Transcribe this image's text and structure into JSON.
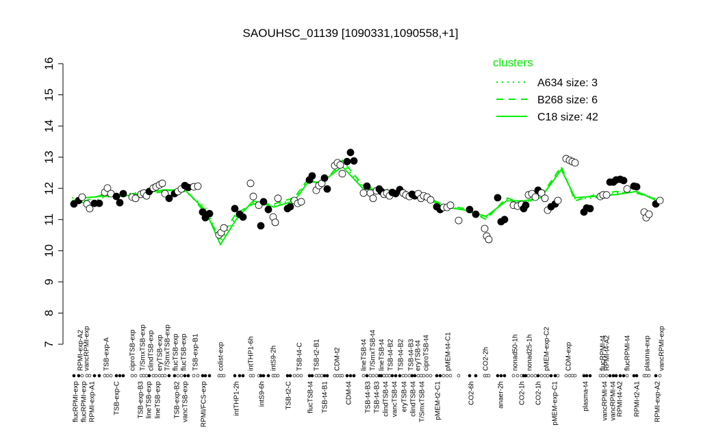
{
  "chart_data": {
    "type": "scatter",
    "title": "SAOUHSC_01139 [1090331,1090558,+1]",
    "xlim": [
      0,
      880
    ],
    "ylim": [
      7,
      16
    ],
    "yticks": [
      7,
      8,
      9,
      10,
      11,
      12,
      13,
      14,
      15,
      16
    ],
    "point_color": "#000000",
    "x": [
      8,
      15,
      20,
      27,
      31,
      38,
      45,
      53,
      57,
      62,
      70,
      75,
      80,
      93,
      98,
      106,
      110,
      114,
      118,
      124,
      128,
      133,
      137,
      141,
      147,
      155,
      160,
      165,
      170,
      175,
      183,
      189,
      196,
      200,
      206,
      220,
      223,
      227,
      243,
      250,
      255,
      266,
      270,
      278,
      281,
      285,
      292,
      299,
      302,
      306,
      320,
      324,
      330,
      335,
      340,
      352,
      356,
      362,
      366,
      370,
      374,
      378,
      389,
      393,
      397,
      400,
      407,
      412,
      417,
      431,
      436,
      441,
      445,
      450,
      454,
      457,
      461,
      465,
      469,
      473,
      478,
      484,
      489,
      493,
      498,
      502,
      506,
      511,
      515,
      519,
      524,
      529,
      538,
      543,
      548,
      553,
      558,
      570,
      586,
      595,
      608,
      611,
      614,
      627,
      632,
      637,
      650,
      656,
      662,
      665,
      668,
      672,
      677,
      682,
      686,
      691,
      696,
      700,
      705,
      711,
      715,
      727,
      732,
      736,
      740,
      753,
      757,
      762,
      777,
      781,
      786,
      791,
      796,
      800,
      806,
      811,
      816,
      826,
      830,
      841,
      844,
      848,
      858,
      864
    ],
    "values": [
      11.5,
      11.61,
      11.72,
      11.5,
      11.35,
      11.52,
      11.52,
      11.87,
      12.01,
      11.83,
      11.74,
      11.54,
      11.83,
      11.72,
      11.68,
      11.81,
      11.85,
      11.76,
      11.9,
      12.01,
      12.05,
      12.11,
      12.16,
      11.83,
      11.68,
      11.83,
      11.9,
      11.98,
      12.09,
      12.03,
      12.05,
      12.07,
      11.24,
      11.06,
      11.19,
      10.51,
      10.58,
      10.73,
      11.35,
      11.17,
      11.08,
      12.16,
      11.74,
      11.46,
      10.8,
      11.57,
      11.32,
      11.08,
      10.91,
      11.68,
      11.35,
      11.41,
      11.61,
      11.52,
      11.57,
      12.27,
      12.4,
      11.94,
      12.09,
      12.16,
      12.33,
      11.98,
      12.73,
      12.82,
      12.75,
      12.47,
      12.86,
      13.15,
      12.88,
      11.85,
      12.07,
      11.85,
      11.68,
      11.92,
      11.98,
      11.9,
      11.81,
      11.85,
      11.76,
      11.87,
      11.83,
      11.96,
      11.85,
      11.79,
      11.74,
      11.81,
      11.76,
      11.83,
      11.68,
      11.76,
      11.72,
      11.63,
      11.41,
      11.32,
      11.39,
      11.39,
      11.46,
      10.97,
      11.32,
      11.17,
      10.71,
      10.47,
      10.36,
      11.7,
      10.93,
      11.0,
      11.46,
      11.43,
      11.48,
      11.35,
      11.46,
      11.79,
      11.83,
      11.72,
      11.94,
      11.85,
      11.68,
      11.3,
      11.41,
      11.5,
      11.61,
      12.95,
      12.9,
      12.86,
      12.82,
      11.24,
      11.37,
      11.35,
      11.74,
      11.79,
      11.79,
      12.2,
      12.2,
      12.27,
      12.29,
      12.25,
      11.98,
      12.07,
      12.05,
      11.24,
      11.06,
      11.17,
      11.5,
      11.61
    ],
    "filled": [
      true,
      true,
      false,
      false,
      false,
      true,
      true,
      false,
      false,
      false,
      true,
      true,
      true,
      false,
      false,
      false,
      false,
      false,
      true,
      false,
      false,
      false,
      false,
      false,
      true,
      true,
      false,
      false,
      true,
      true,
      false,
      false,
      true,
      true,
      true,
      false,
      false,
      false,
      true,
      true,
      true,
      false,
      false,
      false,
      true,
      true,
      true,
      false,
      false,
      false,
      true,
      true,
      false,
      false,
      false,
      true,
      true,
      false,
      false,
      false,
      true,
      true,
      false,
      false,
      false,
      false,
      true,
      true,
      true,
      false,
      true,
      false,
      false,
      false,
      true,
      true,
      false,
      false,
      false,
      true,
      true,
      true,
      false,
      false,
      false,
      true,
      true,
      false,
      false,
      false,
      false,
      false,
      true,
      true,
      false,
      false,
      false,
      false,
      true,
      true,
      false,
      false,
      false,
      true,
      true,
      true,
      false,
      false,
      false,
      true,
      true,
      false,
      false,
      false,
      true,
      false,
      false,
      false,
      true,
      true,
      false,
      false,
      false,
      false,
      false,
      true,
      true,
      true,
      false,
      false,
      false,
      true,
      true,
      true,
      true,
      true,
      false,
      true,
      true,
      false,
      false,
      false,
      true,
      false
    ],
    "cluster_x": [
      5,
      25,
      50,
      80,
      110,
      140,
      170,
      200,
      222,
      245,
      270,
      300,
      330,
      350,
      370,
      400,
      430,
      460,
      490,
      520,
      550,
      580,
      610,
      640,
      665,
      690,
      720,
      740,
      770,
      800,
      830,
      865
    ],
    "legend_title": "clusters",
    "series": [
      {
        "name": "A634 size: 3",
        "color": "#00ee00",
        "dash": "dotted",
        "values": [
          11.7,
          11.5,
          11.7,
          11.8,
          11.9,
          11.95,
          11.9,
          11.4,
          10.3,
          11.1,
          11.55,
          11.45,
          11.65,
          12.25,
          12.15,
          12.8,
          12.05,
          12.0,
          11.8,
          11.7,
          11.45,
          11.3,
          11.05,
          11.65,
          11.55,
          11.7,
          12.65,
          11.65,
          11.7,
          11.85,
          11.9,
          11.6
        ]
      },
      {
        "name": "B268 size: 6",
        "color": "#00ee00",
        "dash": "dashed",
        "values": [
          11.5,
          11.6,
          11.8,
          11.85,
          11.8,
          11.9,
          12.0,
          11.2,
          10.4,
          11.2,
          11.5,
          11.5,
          11.7,
          12.3,
          12.1,
          12.9,
          12.1,
          11.9,
          11.85,
          11.75,
          11.45,
          11.35,
          11.0,
          11.7,
          11.5,
          11.75,
          12.7,
          11.6,
          11.8,
          11.9,
          11.85,
          11.6
        ]
      },
      {
        "name": "C18 size: 42",
        "color": "#00ee00",
        "dash": "solid",
        "values": [
          11.6,
          11.7,
          11.75,
          11.75,
          11.85,
          11.95,
          11.95,
          11.3,
          10.2,
          11.0,
          11.6,
          11.4,
          11.6,
          12.2,
          12.2,
          12.7,
          12.0,
          11.95,
          11.8,
          11.7,
          11.4,
          11.3,
          11.1,
          11.6,
          11.6,
          11.7,
          12.6,
          11.7,
          11.75,
          11.8,
          11.9,
          11.55
        ]
      }
    ],
    "top_labels": {
      "x": [
        17,
        26,
        55,
        93,
        108,
        120,
        133,
        144,
        156,
        168,
        185,
        222,
        266,
        299,
        337,
        362,
        392,
        431,
        444,
        457,
        470,
        485,
        500,
        510,
        522,
        554,
        609,
        652,
        673,
        698,
        730,
        780,
        786,
        816,
        845,
        866
      ],
      "texts": [
        "RPMI-exp-A2",
        "vancRPMI-exp",
        "TSB-exp-A",
        "ciproTSB-exp",
        "T/SmxTSB-exp",
        "clindTSB-exp",
        "eryTSB-exp",
        "T/SmxTSB-exp",
        "flucTSB-exp",
        "flucTSB-exp",
        "TSB-exp-B1",
        "colist-exp",
        "intTHP1-6h",
        "intS9-2h",
        "TSB-t4-C",
        "TSB-t2-B1",
        "CDM-t2",
        "lineTSB-t4",
        "T/SmxTSB-t4",
        "lineTSB-t4",
        "TSB-t4-B2",
        "TSB-t4-B2",
        "TSB-t4-B3",
        "eryTSB-t4",
        "ciproTSB-t4",
        "pMEM-t4-C1",
        "CO2-2h",
        "nonad50-1h",
        "nonad25-1h",
        "pMEM-exp-C2",
        "CDM-exp",
        "flucRPMI-t4",
        "RPMI-t4-A2",
        "flucRPMI-t4",
        "plasma-exp",
        "vancRPMI-exp"
      ]
    },
    "bottom_labels": {
      "x": [
        10,
        22,
        34,
        70,
        105,
        117,
        130,
        158,
        170,
        197,
        245,
        282,
        321,
        353,
        374,
        409,
        437,
        450,
        463,
        476,
        490,
        503,
        516,
        539,
        588,
        631,
        662,
        686,
        710,
        755,
        783,
        795,
        805,
        830,
        860
      ],
      "texts": [
        "flucRPMI-exp",
        "flucRPMI-exp",
        "RPMI-exp-A1",
        "TSB-exp-C",
        "TSB-exp-B3",
        "lineTSB-exp",
        "lineTSB-exp",
        "TSB-exp-B2",
        "vancTSB-exp",
        "RPMI/FCS-exp",
        "intTHP1-2h",
        "intS9-6h",
        "TSB-t2-C",
        "flucTSB-t4",
        "TSB-t4-B1",
        "CDM-t4",
        "TSB-t4-B3",
        "TSB-t4-B3",
        "clindTSB-t4",
        "vancTSB-t4",
        "eryTSB-t4",
        "clindTSB-t4",
        "T/SmxTSB-t4",
        "pMEM-t2-C1",
        "CO2-6h",
        "anaer-2h",
        "CO2-1h",
        "CO2-1h",
        "pMEM-exp-C1",
        "plasma-t4",
        "vancRPMI-t4",
        "vancRPMI-t4",
        "RPMI-t4-A2",
        "RPMI-t2-A1",
        "RPMI-exp-A2"
      ]
    }
  }
}
